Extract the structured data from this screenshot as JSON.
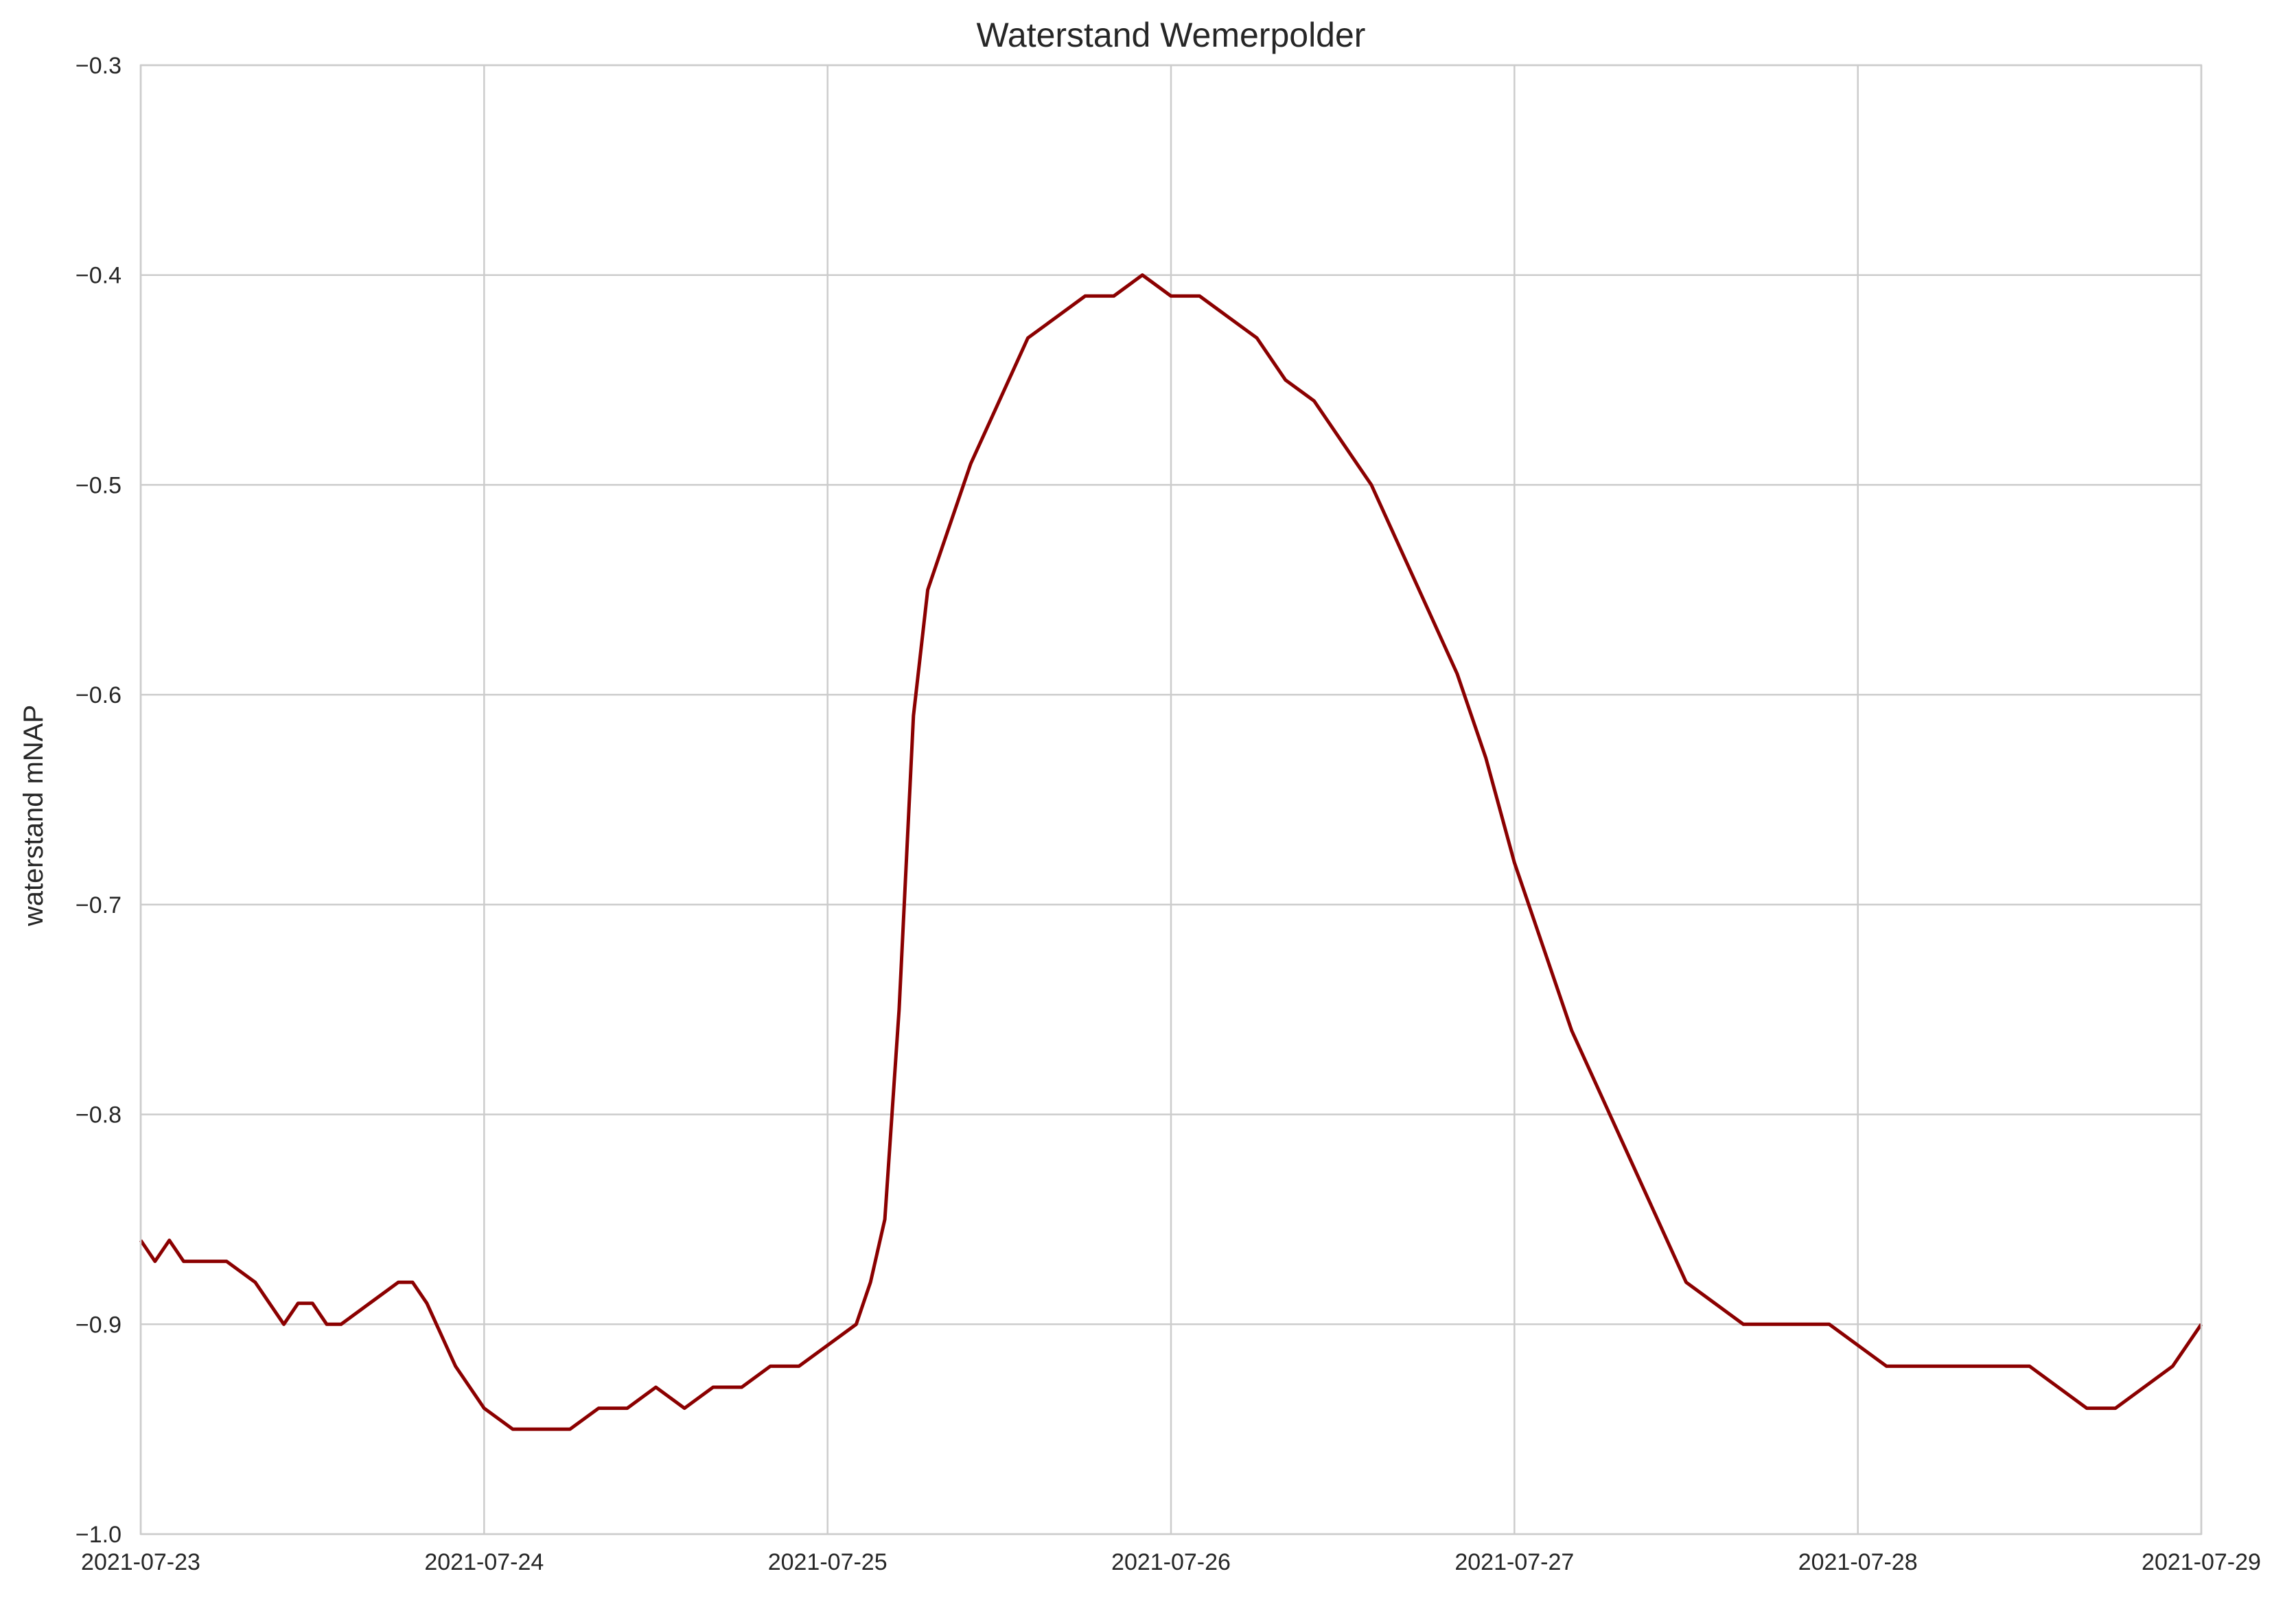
{
  "chart_data": {
    "type": "line",
    "title": "Waterstand Wemerpolder",
    "xlabel": "",
    "ylabel": "waterstand mNAP",
    "xlim": [
      "2021-07-23",
      "2021-07-29"
    ],
    "ylim": [
      -1.0,
      -0.3
    ],
    "grid": true,
    "legend": "none",
    "line_color": "#8b0000",
    "x_ticks": [
      "2021-07-23",
      "2021-07-24",
      "2021-07-25",
      "2021-07-26",
      "2021-07-27",
      "2021-07-28",
      "2021-07-29"
    ],
    "y_ticks": [
      "-1.0",
      "-0.9",
      "-0.8",
      "-0.7",
      "-0.6",
      "-0.5",
      "-0.4",
      "-0.3"
    ],
    "series": [
      {
        "x": [
          "2021-07-23 00:00",
          "2021-07-23 01:00",
          "2021-07-23 02:00",
          "2021-07-23 03:00",
          "2021-07-23 04:00",
          "2021-07-23 05:00",
          "2021-07-23 06:00",
          "2021-07-23 08:00",
          "2021-07-23 09:00",
          "2021-07-23 10:00",
          "2021-07-23 11:00",
          "2021-07-23 12:00",
          "2021-07-23 13:00",
          "2021-07-23 14:00",
          "2021-07-23 16:00",
          "2021-07-23 18:00",
          "2021-07-23 19:00",
          "2021-07-23 20:00",
          "2021-07-23 22:00",
          "2021-07-24 00:00",
          "2021-07-24 02:00",
          "2021-07-24 04:00",
          "2021-07-24 06:00",
          "2021-07-24 08:00",
          "2021-07-24 10:00",
          "2021-07-24 12:00",
          "2021-07-24 14:00",
          "2021-07-24 16:00",
          "2021-07-24 18:00",
          "2021-07-24 20:00",
          "2021-07-24 22:00",
          "2021-07-25 00:00",
          "2021-07-25 02:00",
          "2021-07-25 03:00",
          "2021-07-25 04:00",
          "2021-07-25 05:00",
          "2021-07-25 06:00",
          "2021-07-25 07:00",
          "2021-07-25 08:00",
          "2021-07-25 10:00",
          "2021-07-25 12:00",
          "2021-07-25 14:00",
          "2021-07-25 16:00",
          "2021-07-25 18:00",
          "2021-07-25 20:00",
          "2021-07-25 22:00",
          "2021-07-26 00:00",
          "2021-07-26 02:00",
          "2021-07-26 04:00",
          "2021-07-26 06:00",
          "2021-07-26 08:00",
          "2021-07-26 10:00",
          "2021-07-26 12:00",
          "2021-07-26 14:00",
          "2021-07-26 16:00",
          "2021-07-26 18:00",
          "2021-07-26 20:00",
          "2021-07-26 22:00",
          "2021-07-27 00:00",
          "2021-07-27 02:00",
          "2021-07-27 04:00",
          "2021-07-27 06:00",
          "2021-07-27 08:00",
          "2021-07-27 10:00",
          "2021-07-27 12:00",
          "2021-07-27 14:00",
          "2021-07-27 16:00",
          "2021-07-27 18:00",
          "2021-07-27 20:00",
          "2021-07-27 22:00",
          "2021-07-28 00:00",
          "2021-07-28 02:00",
          "2021-07-28 04:00",
          "2021-07-28 06:00",
          "2021-07-28 08:00",
          "2021-07-28 10:00",
          "2021-07-28 12:00",
          "2021-07-28 14:00",
          "2021-07-28 16:00",
          "2021-07-28 18:00",
          "2021-07-28 20:00",
          "2021-07-28 22:00",
          "2021-07-29 00:00"
        ],
        "y": [
          -0.86,
          -0.87,
          -0.86,
          -0.87,
          -0.87,
          -0.87,
          -0.87,
          -0.88,
          -0.89,
          -0.9,
          -0.89,
          -0.89,
          -0.9,
          -0.9,
          -0.89,
          -0.88,
          -0.88,
          -0.89,
          -0.92,
          -0.94,
          -0.95,
          -0.95,
          -0.95,
          -0.94,
          -0.94,
          -0.93,
          -0.94,
          -0.93,
          -0.93,
          -0.92,
          -0.92,
          -0.91,
          -0.9,
          -0.88,
          -0.85,
          -0.75,
          -0.61,
          -0.55,
          -0.53,
          -0.49,
          -0.46,
          -0.43,
          -0.42,
          -0.41,
          -0.41,
          -0.4,
          -0.41,
          -0.41,
          -0.42,
          -0.43,
          -0.45,
          -0.46,
          -0.48,
          -0.5,
          -0.53,
          -0.56,
          -0.59,
          -0.63,
          -0.68,
          -0.72,
          -0.76,
          -0.79,
          -0.82,
          -0.85,
          -0.88,
          -0.89,
          -0.9,
          -0.9,
          -0.9,
          -0.9,
          -0.91,
          -0.92,
          -0.92,
          -0.92,
          -0.92,
          -0.92,
          -0.92,
          -0.93,
          -0.94,
          -0.94,
          -0.93,
          -0.92,
          -0.9
        ]
      }
    ]
  }
}
